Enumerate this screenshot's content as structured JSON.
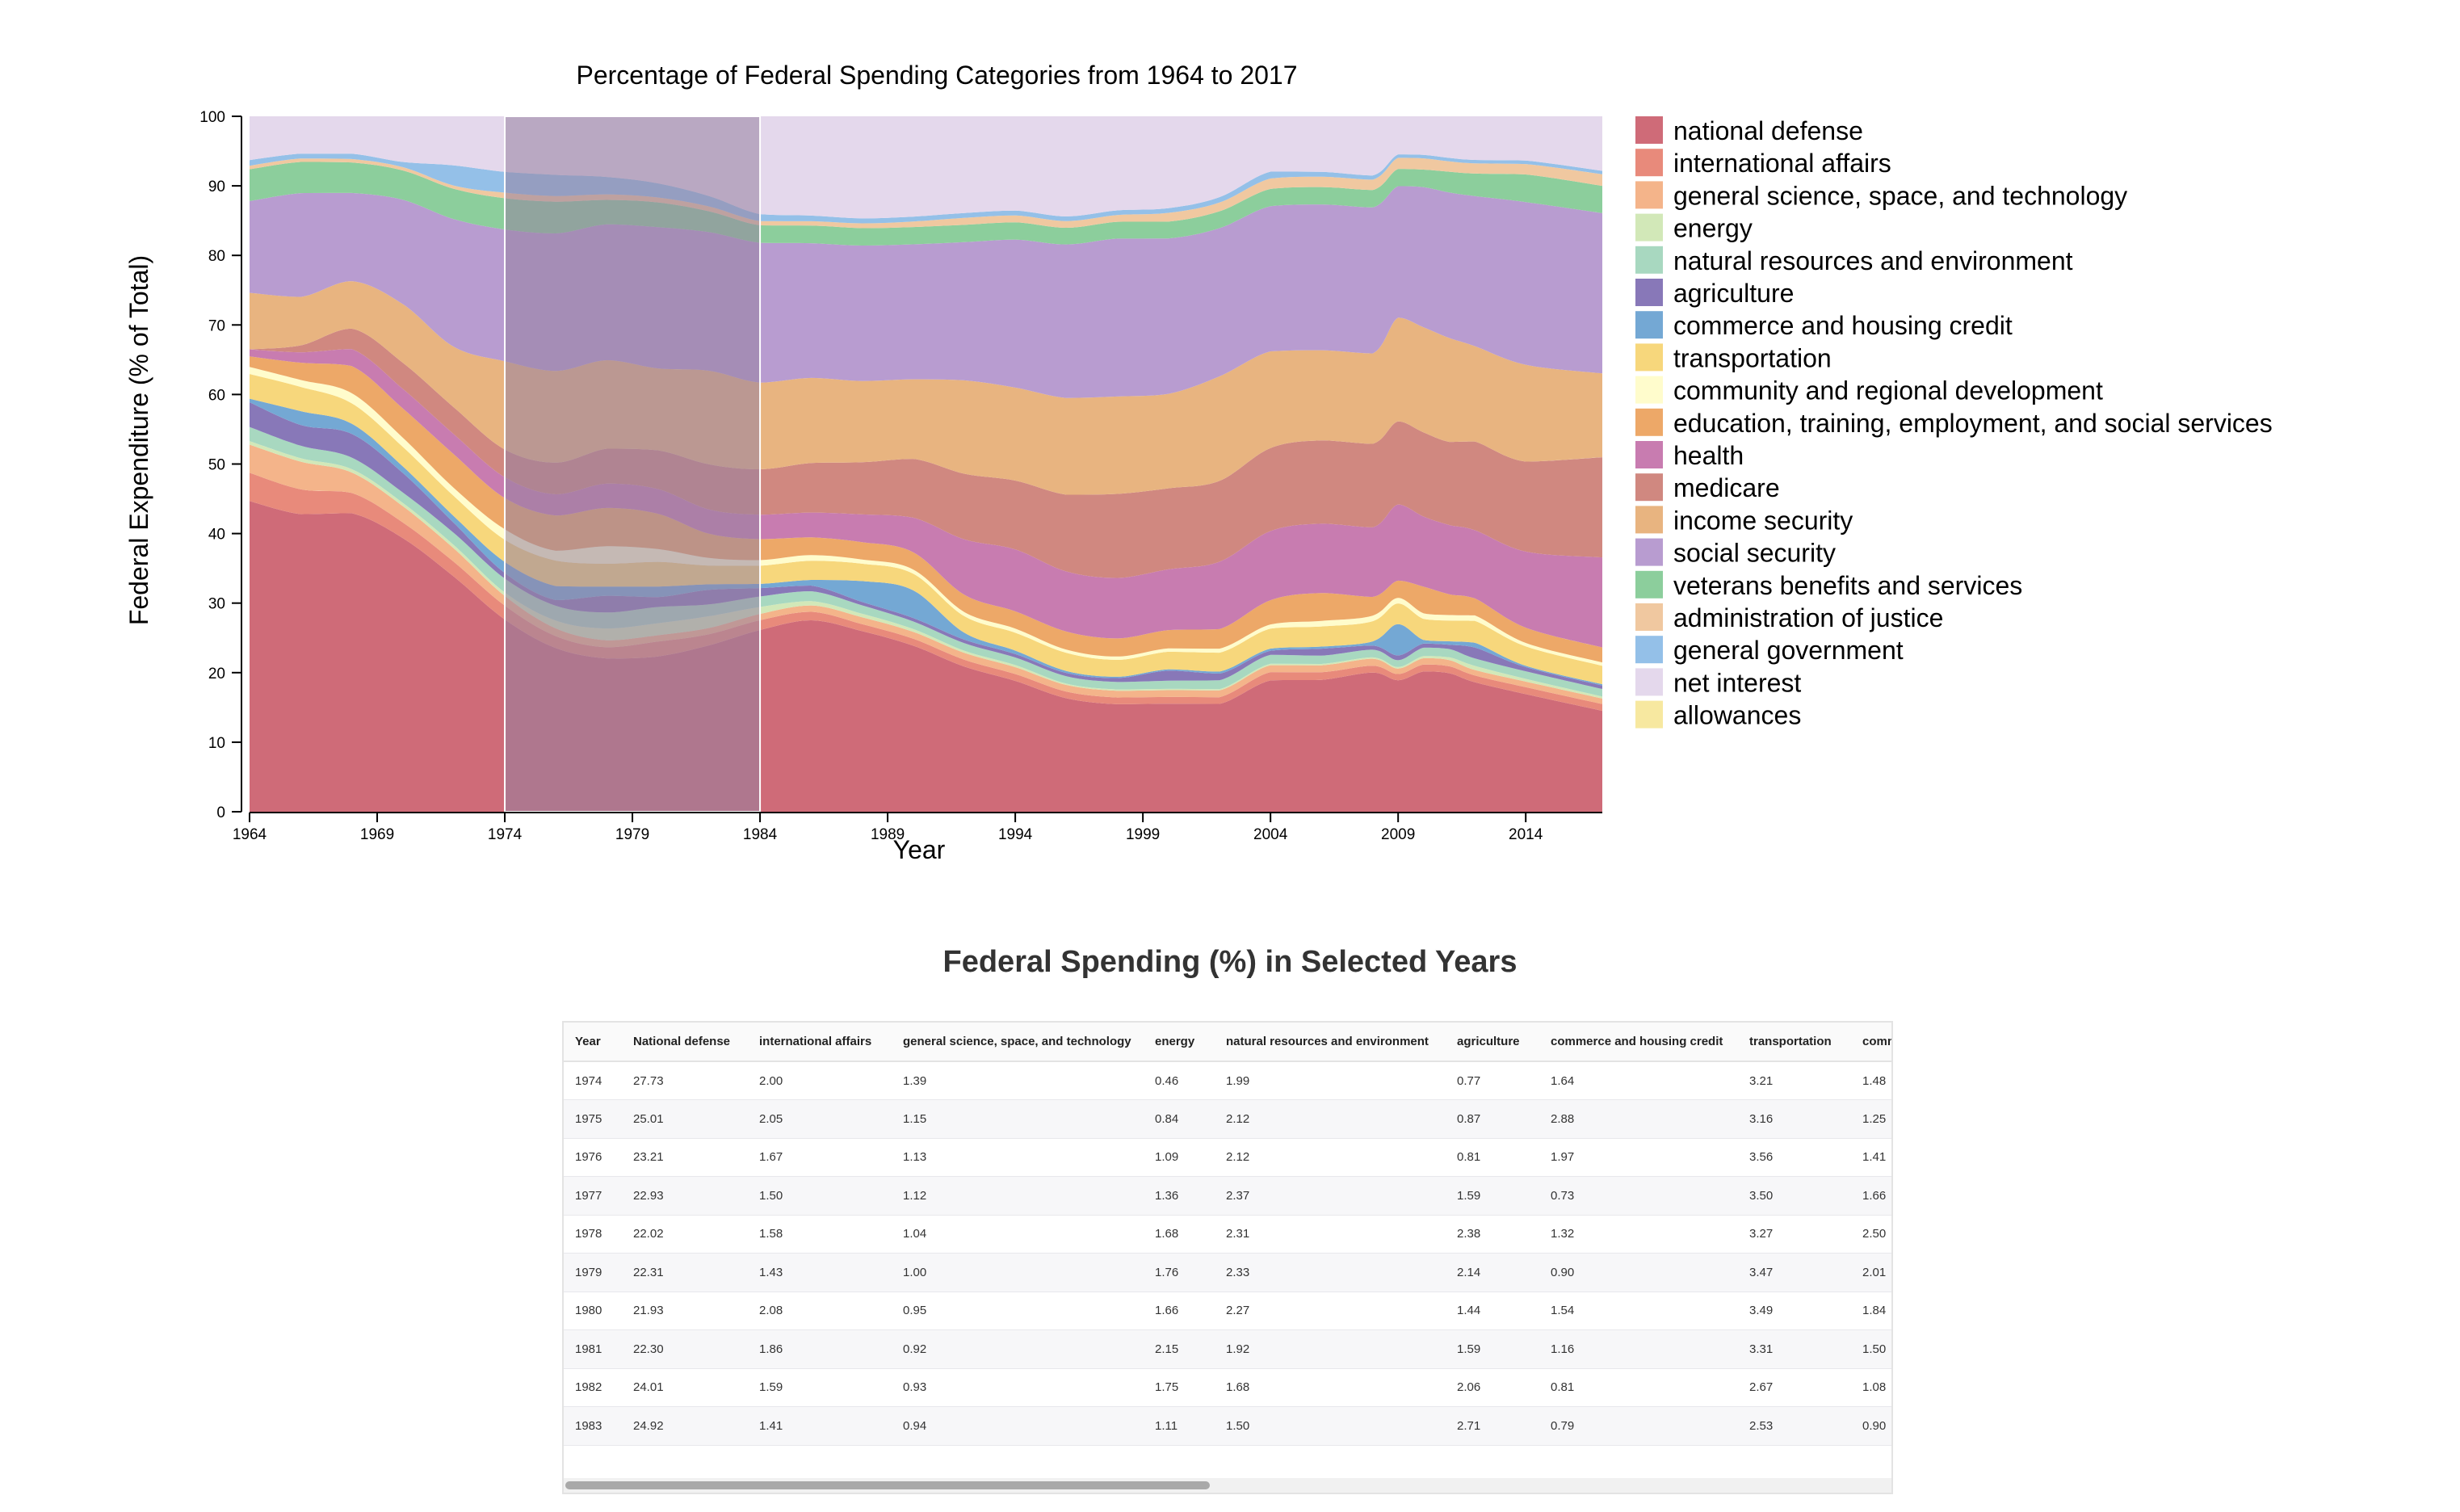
{
  "chart_data": {
    "type": "area",
    "stacked": true,
    "normalized": true,
    "title": "Percentage of Federal Spending Categories from 1964 to 2017",
    "xlabel": "Year",
    "ylabel": "Federal Expenditure (% of Total)",
    "x": [
      1964,
      1966,
      1968,
      1970,
      1972,
      1974,
      1976,
      1978,
      1980,
      1982,
      1984,
      1986,
      1988,
      1990,
      1992,
      1994,
      1996,
      1998,
      2000,
      2002,
      2004,
      2006,
      2008,
      2009,
      2010,
      2011,
      2012,
      2014,
      2017
    ],
    "xlim": [
      1964,
      2017
    ],
    "ylim": [
      0,
      100
    ],
    "xticks": [
      1964,
      1969,
      1974,
      1979,
      1984,
      1989,
      1994,
      1999,
      2004,
      2009,
      2014
    ],
    "yticks": [
      0,
      10,
      20,
      30,
      40,
      50,
      60,
      70,
      80,
      90,
      100
    ],
    "grid": false,
    "legend": "right",
    "selection": [
      1974,
      1984
    ],
    "series": [
      {
        "name": "national defense",
        "color": "#cf6b78",
        "values": [
          44,
          43,
          44,
          42,
          35,
          27.7,
          23.2,
          22,
          22,
          24,
          26,
          27,
          26,
          24,
          21,
          19,
          17,
          16,
          16,
          16,
          19,
          19,
          20,
          19,
          20,
          20,
          19,
          17,
          14.8
        ]
      },
      {
        "name": "international affairs",
        "color": "#e88a7b",
        "values": [
          4,
          3.6,
          3,
          2.4,
          2.2,
          2,
          1.7,
          1.6,
          2.1,
          1.6,
          1.4,
          1.2,
          1,
          1,
          1,
          1,
          1,
          1,
          1,
          1,
          1.2,
          1.1,
          1,
          0.9,
          1,
          1,
          1,
          1,
          1
        ]
      },
      {
        "name": "general science, space, and technology",
        "color": "#f4b48a",
        "values": [
          4,
          4,
          3,
          2.5,
          2,
          1.4,
          1.1,
          1,
          0.9,
          0.9,
          0.9,
          0.9,
          1,
          1,
          1,
          1,
          1,
          1,
          1,
          1,
          1,
          1,
          1,
          0.8,
          0.9,
          0.9,
          0.8,
          0.8,
          0.8
        ]
      },
      {
        "name": "energy",
        "color": "#d2e8b8",
        "values": [
          0.5,
          0.5,
          0.5,
          0.5,
          0.5,
          0.5,
          1.1,
          1.7,
          1.7,
          1.7,
          1,
          0.6,
          0.5,
          0.4,
          0.3,
          0.3,
          0.2,
          0.2,
          0.2,
          0.2,
          0.2,
          0.2,
          0.2,
          0.2,
          0.3,
          0.4,
          0.6,
          0.4,
          0.3
        ]
      },
      {
        "name": "natural resources and environment",
        "color": "#a8d8c0",
        "values": [
          2,
          1.8,
          1.7,
          1.6,
          1.8,
          2,
          2.1,
          2.3,
          2.3,
          1.7,
          1.5,
          1.4,
          1.2,
          1.1,
          1.1,
          1.1,
          1.1,
          1.1,
          1.2,
          1.3,
          1.3,
          1.2,
          1.1,
          1,
          1.2,
          1.2,
          1.1,
          1.1,
          1.1
        ]
      },
      {
        "name": "agriculture",
        "color": "#8878b8",
        "values": [
          3.5,
          3,
          3.5,
          3,
          1.5,
          0.8,
          0.8,
          2.4,
          1.4,
          2.1,
          1.2,
          0.8,
          0.5,
          0.5,
          0.5,
          0.5,
          0.5,
          0.6,
          1.5,
          1,
          0.6,
          1,
          0.6,
          0.7,
          0.6,
          0.6,
          1.6,
          0.6,
          0.5
        ]
      },
      {
        "name": "commerce and housing credit",
        "color": "#74a8d4",
        "values": [
          0.5,
          2,
          1.5,
          1,
          1,
          1.6,
          2,
          1.3,
          1.5,
          0.8,
          0.6,
          0.8,
          3,
          4,
          1,
          0.5,
          0.3,
          0.2,
          0.2,
          0.3,
          0.3,
          0.3,
          0.6,
          4.5,
          0.5,
          0.5,
          0.7,
          0.2,
          0.2
        ]
      },
      {
        "name": "transportation",
        "color": "#f7d77c",
        "values": [
          3.5,
          3.5,
          3,
          3,
          3,
          3.2,
          3.6,
          3.3,
          3.5,
          2.7,
          2.6,
          2.7,
          2.5,
          2.4,
          2.4,
          2.6,
          2.7,
          2.5,
          2.6,
          2.8,
          2.9,
          2.9,
          2.9,
          3,
          3,
          3,
          3.2,
          2.8,
          2.7
        ]
      },
      {
        "name": "community and regional development",
        "color": "#fffccc",
        "values": [
          1,
          1,
          1.5,
          1.4,
          1.2,
          1.5,
          1.4,
          2.5,
          1.8,
          1.1,
          0.8,
          0.8,
          0.6,
          0.6,
          0.6,
          0.6,
          0.5,
          0.5,
          0.5,
          0.6,
          0.6,
          0.8,
          0.8,
          0.8,
          0.8,
          0.8,
          0.8,
          0.5,
          0.5
        ]
      },
      {
        "name": "education, training, employment, and social services",
        "color": "#eda868",
        "values": [
          1.5,
          2.5,
          4,
          4.5,
          5,
          4.5,
          5,
          5.5,
          5,
          3.5,
          3,
          2.5,
          2.5,
          2.5,
          2.5,
          2.5,
          2.7,
          2.7,
          2.7,
          2.9,
          3.5,
          4,
          2.7,
          2.5,
          3.8,
          3,
          2.5,
          2.2,
          2.2
        ]
      },
      {
        "name": "health",
        "color": "#c87cb0",
        "values": [
          1,
          1.5,
          2.5,
          3,
          3,
          3,
          3,
          3.5,
          3.5,
          3.5,
          3.5,
          3.5,
          4,
          5,
          8,
          9,
          9,
          9,
          9,
          10,
          10,
          10,
          10,
          11,
          10,
          10,
          10,
          11,
          13.2
        ]
      },
      {
        "name": "medicare",
        "color": "#d08880",
        "values": [
          0,
          1,
          3,
          4,
          4,
          4,
          4.5,
          5,
          5.5,
          6.5,
          6.5,
          7,
          7.5,
          8.5,
          9.5,
          10,
          11.5,
          12.5,
          12,
          12,
          12,
          12,
          12,
          12,
          12,
          12,
          13,
          13,
          14.7
        ]
      },
      {
        "name": "income security",
        "color": "#e8b480",
        "values": [
          8,
          7,
          7,
          9,
          9,
          12.7,
          13,
          12.7,
          11.6,
          13.5,
          12.4,
          12,
          11.7,
          11.5,
          13.5,
          13.5,
          14.5,
          14.5,
          14,
          15.5,
          14,
          13,
          13,
          15,
          15,
          15,
          14,
          14,
          12.3
        ]
      },
      {
        "name": "social security",
        "color": "#b89cd0",
        "values": [
          13,
          15,
          13,
          16,
          19,
          19,
          19.5,
          19.5,
          20,
          20,
          20,
          19,
          19.5,
          19.5,
          20,
          21.5,
          23,
          23.5,
          23,
          22,
          21,
          21,
          21,
          19,
          20,
          21,
          22,
          23.5,
          23.5
        ]
      },
      {
        "name": "veterans benefits and services",
        "color": "#8cce9c",
        "values": [
          4.5,
          4.5,
          4.5,
          4.5,
          4.5,
          4.5,
          4.5,
          3.5,
          3.5,
          3,
          2.5,
          2.5,
          2.5,
          2.5,
          2.5,
          2.5,
          2.5,
          2.5,
          2.5,
          2.5,
          2.5,
          2.5,
          2.5,
          2.5,
          2.5,
          3,
          3.3,
          4,
          4
        ]
      },
      {
        "name": "administration of justice",
        "color": "#f0c8a0",
        "values": [
          0.5,
          0.5,
          0.5,
          0.5,
          0.5,
          0.8,
          0.8,
          0.8,
          0.7,
          0.7,
          0.6,
          0.6,
          0.7,
          0.8,
          1,
          1,
          1,
          1,
          1.3,
          1.3,
          1.5,
          1.5,
          1.5,
          1.6,
          1.6,
          1.5,
          1.5,
          1.5,
          1.7
        ]
      },
      {
        "name": "general government",
        "color": "#94c0e8",
        "values": [
          0.8,
          0.7,
          0.8,
          0.8,
          3,
          3,
          3,
          2.5,
          2,
          1.5,
          1,
          0.8,
          0.7,
          0.7,
          0.7,
          0.7,
          0.7,
          0.7,
          0.7,
          0.8,
          1,
          0.7,
          0.6,
          0.5,
          0.5,
          0.5,
          0.5,
          0.5,
          0.5
        ]
      },
      {
        "name": "net interest",
        "color": "#e4d8ec",
        "values": [
          6.2,
          5.4,
          5.5,
          7,
          7.3,
          8,
          8.3,
          8.7,
          9.5,
          11.5,
          14,
          14,
          14.7,
          14.5,
          14,
          13.7,
          15,
          14,
          13.6,
          12,
          8,
          8,
          8.5,
          5.5,
          5.5,
          6,
          6.4,
          6.4,
          8
        ]
      },
      {
        "name": "allowances",
        "color": "#f7e8a0",
        "values": [
          0,
          0,
          0,
          0,
          0,
          0,
          0,
          0,
          0,
          0,
          0,
          0,
          0,
          0,
          0,
          0,
          0,
          0,
          0,
          0,
          0,
          0,
          0,
          0,
          0,
          0,
          0,
          0,
          0
        ]
      }
    ]
  },
  "table": {
    "title": "Federal Spending (%) in Selected Years",
    "columns": [
      "Year",
      "National defense",
      "international affairs",
      "general science, space, and technology",
      "energy",
      "natural resources and environment",
      "agriculture",
      "commerce and housing credit",
      "transportation",
      "community and regiona"
    ],
    "rows": [
      [
        "1974",
        "27.73",
        "2.00",
        "1.39",
        "0.46",
        "1.99",
        "0.77",
        "1.64",
        "3.21",
        "1.48"
      ],
      [
        "1975",
        "25.01",
        "2.05",
        "1.15",
        "0.84",
        "2.12",
        "0.87",
        "2.88",
        "3.16",
        "1.25"
      ],
      [
        "1976",
        "23.21",
        "1.67",
        "1.13",
        "1.09",
        "2.12",
        "0.81",
        "1.97",
        "3.56",
        "1.41"
      ],
      [
        "1977",
        "22.93",
        "1.50",
        "1.12",
        "1.36",
        "2.37",
        "1.59",
        "0.73",
        "3.50",
        "1.66"
      ],
      [
        "1978",
        "22.02",
        "1.58",
        "1.04",
        "1.68",
        "2.31",
        "2.38",
        "1.32",
        "3.27",
        "2.50"
      ],
      [
        "1979",
        "22.31",
        "1.43",
        "1.00",
        "1.76",
        "2.33",
        "2.14",
        "0.90",
        "3.47",
        "2.01"
      ],
      [
        "1980",
        "21.93",
        "2.08",
        "0.95",
        "1.66",
        "2.27",
        "1.44",
        "1.54",
        "3.49",
        "1.84"
      ],
      [
        "1981",
        "22.30",
        "1.86",
        "0.92",
        "2.15",
        "1.92",
        "1.59",
        "1.16",
        "3.31",
        "1.50"
      ],
      [
        "1982",
        "24.01",
        "1.59",
        "0.93",
        "1.75",
        "1.68",
        "2.06",
        "0.81",
        "2.67",
        "1.08"
      ],
      [
        "1983",
        "24.92",
        "1.41",
        "0.94",
        "1.11",
        "1.50",
        "2.71",
        "0.79",
        "2.53",
        "0.90"
      ]
    ]
  }
}
